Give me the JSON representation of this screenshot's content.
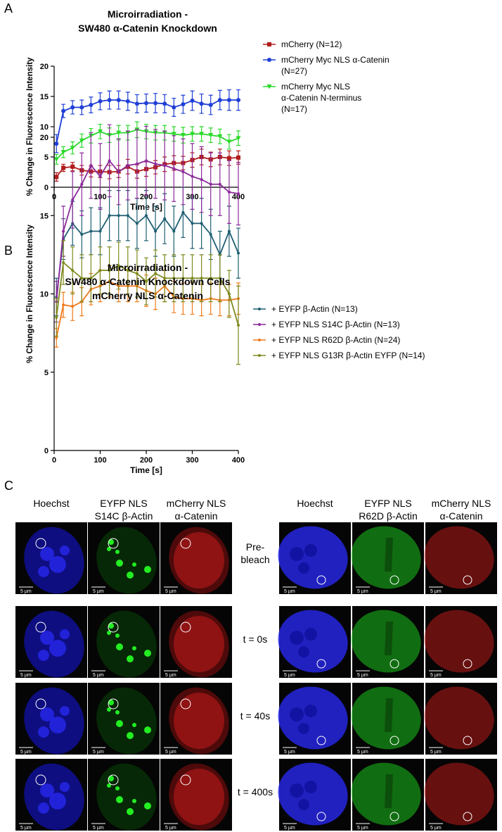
{
  "panel_labels": [
    "A",
    "B",
    "C"
  ],
  "chart_data": [
    {
      "type": "line",
      "title": "Microirradiation -\nSW480 α-Catenin Knockdown",
      "x_label": "Time [s]",
      "y_label": "% Change in Fluorescence Intensity",
      "x": [
        5,
        20,
        40,
        60,
        80,
        100,
        120,
        140,
        160,
        180,
        200,
        220,
        240,
        260,
        280,
        300,
        320,
        340,
        360,
        380,
        400
      ],
      "xlim": [
        0,
        400
      ],
      "xticks": [
        0,
        100,
        200,
        300,
        400
      ],
      "ylim": [
        0,
        20
      ],
      "yticks": [
        0,
        5,
        10,
        15,
        20
      ],
      "series": [
        {
          "name": "mCherry (N=12)",
          "color": "#b01c1c",
          "marker": "square",
          "values": [
            1.7,
            3.2,
            3.4,
            2.8,
            2.6,
            2.6,
            2.5,
            2.6,
            3.4,
            2.6,
            3.0,
            3.3,
            3.8,
            4.0,
            4.0,
            4.5,
            5.0,
            4.6,
            5.0,
            4.8,
            4.9
          ],
          "errors": [
            0.7,
            0.6,
            0.7,
            0.8,
            0.9,
            1.0,
            1.1,
            1.0,
            1.2,
            1.1,
            1.2,
            1.1,
            1.2,
            1.2,
            1.1,
            1.2,
            1.3,
            1.2,
            1.3,
            1.2,
            1.1
          ]
        },
        {
          "name": "mCherry Myc NLS α-Catenin\n(N=27)",
          "color": "#1f3fd6",
          "marker": "circle",
          "values": [
            7.2,
            12.6,
            13.2,
            13.2,
            13.6,
            14.2,
            14.4,
            14.4,
            14.2,
            13.8,
            13.9,
            13.9,
            13.8,
            13.2,
            13.7,
            14.3,
            13.8,
            13.6,
            14.4,
            14.4,
            14.4
          ],
          "errors": [
            1.5,
            1.1,
            1.1,
            1.2,
            1.3,
            1.4,
            1.5,
            1.5,
            1.5,
            1.5,
            1.5,
            1.6,
            1.5,
            1.5,
            1.5,
            1.6,
            1.6,
            1.6,
            1.6,
            1.7,
            1.7
          ]
        },
        {
          "name": "mCherry Myc NLS\nα-Catenin N-terminus\n(N=17)",
          "color": "#2bd92b",
          "marker": "triangle",
          "values": [
            4.6,
            5.8,
            6.5,
            7.7,
            8.5,
            9.2,
            8.6,
            9.0,
            9.0,
            9.5,
            9.2,
            9.0,
            9.0,
            8.8,
            8.6,
            8.8,
            8.8,
            8.6,
            8.4,
            7.5,
            8.1
          ],
          "errors": [
            0.8,
            0.9,
            1.0,
            1.1,
            1.2,
            1.2,
            1.2,
            1.2,
            1.2,
            1.3,
            1.2,
            1.2,
            1.2,
            1.2,
            1.3,
            1.2,
            1.2,
            1.2,
            1.2,
            1.2,
            1.2
          ]
        }
      ]
    },
    {
      "type": "line",
      "title": "Microirradiation -\nSW480 α-Catenin Knockdown Cells\nmCherry NLS α-Catenin",
      "x_label": "Time [s]",
      "y_label": "% Change in Fluorescence Intensity",
      "x": [
        5,
        20,
        40,
        60,
        80,
        100,
        120,
        140,
        160,
        180,
        200,
        220,
        240,
        260,
        280,
        300,
        320,
        340,
        360,
        380,
        400
      ],
      "xlim": [
        0,
        400
      ],
      "xticks": [
        0,
        100,
        200,
        300,
        400
      ],
      "ylim": [
        0,
        20
      ],
      "yticks": [
        0,
        5,
        10,
        15,
        20
      ],
      "series": [
        {
          "name": "+ EYFP β-Actin (N=13)",
          "color": "#1f5f73",
          "marker": "dot",
          "values": [
            9.8,
            13.5,
            14.5,
            13.8,
            14.0,
            14.0,
            15.0,
            15.0,
            15.0,
            14.5,
            15.0,
            14.0,
            14.8,
            14.0,
            15.2,
            14.5,
            14.5,
            13.8,
            12.5,
            14.0,
            12.6
          ],
          "errors": [
            1.2,
            1.3,
            1.4,
            1.5,
            1.5,
            1.5,
            1.6,
            1.6,
            1.6,
            1.6,
            1.6,
            1.6,
            1.6,
            1.6,
            1.6,
            1.6,
            1.6,
            1.6,
            1.5,
            1.6,
            1.6
          ]
        },
        {
          "name": "+ EYFP NLS S14C β-Actin (N=13)",
          "color": "#8a2a9a",
          "marker": "dot",
          "values": [
            9.5,
            14.0,
            16.0,
            17.0,
            18.2,
            17.5,
            18.5,
            17.8,
            18.2,
            18.3,
            18.5,
            18.3,
            18.2,
            18.0,
            17.8,
            17.5,
            17.3,
            17.0,
            17.0,
            16.5,
            16.4
          ],
          "errors": [
            1.3,
            1.6,
            1.8,
            2.0,
            2.1,
            2.1,
            2.3,
            2.1,
            2.2,
            2.2,
            2.2,
            2.2,
            2.2,
            2.1,
            2.1,
            2.1,
            2.1,
            2.0,
            2.0,
            2.0,
            2.0
          ]
        },
        {
          "name": "+ EYFP NLS R62D β-Actin (N=24)",
          "color": "#f07a1a",
          "marker": "dot",
          "values": [
            7.2,
            9.3,
            9.2,
            9.5,
            10.3,
            10.5,
            10.8,
            10.5,
            10.5,
            10.5,
            10.2,
            10.0,
            10.5,
            9.8,
            9.7,
            9.7,
            9.6,
            9.7,
            9.6,
            9.6,
            9.7
          ],
          "errors": [
            0.6,
            0.8,
            0.9,
            0.9,
            1.0,
            1.0,
            1.0,
            1.0,
            1.0,
            1.0,
            1.0,
            1.0,
            1.0,
            1.0,
            1.0,
            1.0,
            1.0,
            1.0,
            1.0,
            1.0,
            1.0
          ]
        },
        {
          "name": "+ EYFP NLS G13R β-Actin EYFP (N=14)",
          "color": "#7f8a1f",
          "marker": "dot",
          "values": [
            8.5,
            12.0,
            11.5,
            11.0,
            11.0,
            11.5,
            11.5,
            11.8,
            11.5,
            11.3,
            10.8,
            11.3,
            11.0,
            11.0,
            11.0,
            11.0,
            11.0,
            11.0,
            11.0,
            10.0,
            8.0
          ],
          "errors": [
            1.2,
            1.4,
            1.5,
            1.5,
            1.5,
            1.5,
            1.5,
            1.5,
            1.5,
            1.5,
            1.5,
            1.5,
            1.5,
            1.5,
            1.5,
            1.5,
            1.5,
            1.5,
            1.5,
            1.5,
            2.5
          ]
        }
      ]
    }
  ],
  "panel_c": {
    "left_columns": [
      "Hoechst",
      "EYFP NLS\nS14C β-Actin",
      "mCherry NLS\nα-Catenin"
    ],
    "right_columns": [
      "Hoechst",
      "EYFP NLS\nR62D β-Actin",
      "mCherry NLS\nα-Catenin"
    ],
    "row_labels": [
      "Pre-\nbleach",
      "t = 0s",
      "t = 40s",
      "t = 400s"
    ],
    "scale_bar": "5 µm"
  }
}
